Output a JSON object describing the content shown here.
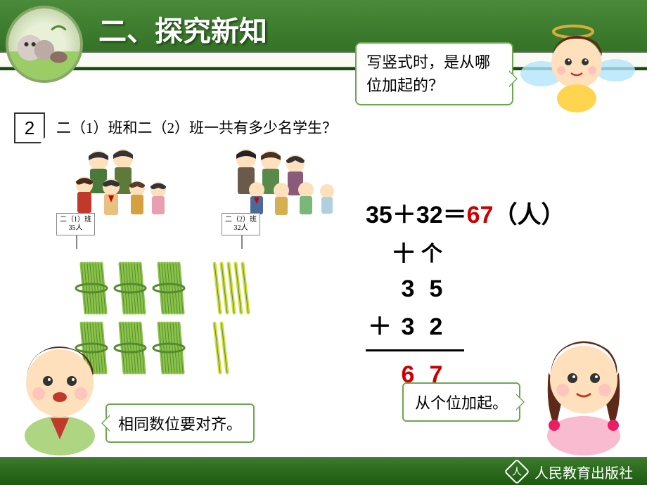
{
  "header": {
    "title": "二、探究新知",
    "bg_gradient": [
      "#4a8a3a",
      "#2d6b1f"
    ]
  },
  "top_speech": "写竖式时，是从哪位加起的？",
  "flag_number": "2",
  "question": "二（1）班和二（2）班一共有多少名学生？",
  "signs": {
    "class1": {
      "line1": "二（1）班",
      "line2": "35人"
    },
    "class2": {
      "line1": "二（2）班",
      "line2": "32人"
    }
  },
  "sticks": {
    "row1_bundles": 3,
    "row1_loose": 5,
    "row2_bundles": 3,
    "row2_loose": 2,
    "bundle_color": "#8bc34a",
    "bundle_dark": "#558b2f",
    "loose_color": "#cddc39"
  },
  "equation": {
    "a": "35",
    "op": "＋",
    "b": "32",
    "eq": "＝",
    "result": "67",
    "unit": "（人）"
  },
  "columns": {
    "tens": "十",
    "ones": "个"
  },
  "vertical": {
    "r1": {
      "t": "3",
      "o": "5"
    },
    "r2": {
      "sign": "＋",
      "t": "3",
      "o": "2"
    },
    "r3": {
      "t": "6",
      "o": "7"
    }
  },
  "speech_bl": "相同数位要对齐。",
  "speech_br": "从个位加起。",
  "footer": {
    "publisher": "人民教育出版社",
    "logo": "人"
  },
  "colors": {
    "border_green": "#6aa84f",
    "red": "#cc0000",
    "text": "#000000"
  }
}
